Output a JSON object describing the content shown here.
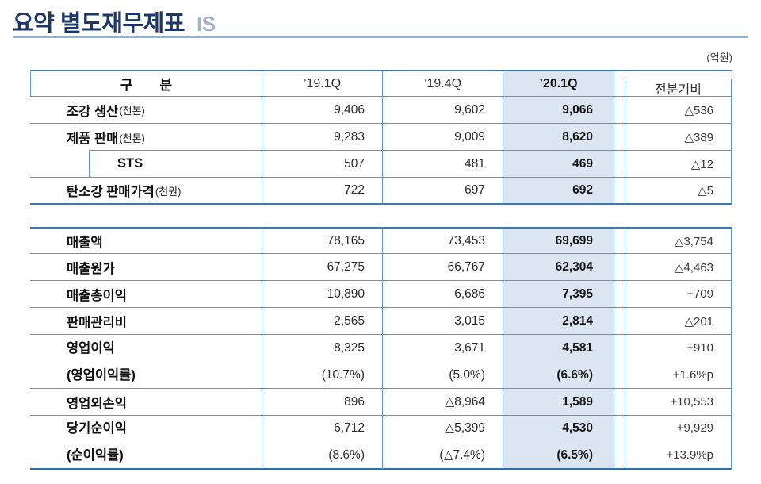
{
  "title": {
    "main": "요약 별도재무제표",
    "suffix": "_IS"
  },
  "unit_note": "(억원)",
  "header": {
    "label": "구　　분",
    "c1": "’19.1Q",
    "c2": "’19.4Q",
    "c3": "’20.1Q",
    "c4": "전분기비"
  },
  "metrics": {
    "rows": [
      {
        "label": "조강 생산",
        "unit": "(천톤)",
        "values": [
          "9,406",
          "9,602",
          "9,066",
          "△536"
        ]
      },
      {
        "label": "제품 판매",
        "unit": "(천톤)",
        "values": [
          "9,283",
          "9,009",
          "8,620",
          "△389"
        ]
      },
      {
        "label": "STS",
        "values": [
          "507",
          "481",
          "469",
          "△12"
        ]
      },
      {
        "label": "탄소강 판매가격",
        "unit": "(천원)",
        "values": [
          "722",
          "697",
          "692",
          "△5"
        ]
      }
    ]
  },
  "income": {
    "rows": [
      {
        "label": "매출액",
        "values": [
          "78,165",
          "73,453",
          "69,699",
          "△3,754"
        ]
      },
      {
        "label": "매출원가",
        "values": [
          "67,275",
          "66,767",
          "62,304",
          "△4,463"
        ]
      },
      {
        "label": "매출총이익",
        "values": [
          "10,890",
          "6,686",
          "7,395",
          "+709"
        ]
      },
      {
        "label": "판매관리비",
        "values": [
          "2,565",
          "3,015",
          "2,814",
          "△201"
        ]
      },
      {
        "lines": [
          {
            "label": "영업이익",
            "values": [
              "8,325",
              "3,671",
              "4,581",
              "+910"
            ]
          },
          {
            "label": "(영업이익률)",
            "values": [
              "(10.7%)",
              "(5.0%)",
              "(6.6%)",
              "+1.6%p"
            ]
          }
        ]
      },
      {
        "label": "영업외손익",
        "values": [
          "896",
          "△8,964",
          "1,589",
          "+10,553"
        ]
      },
      {
        "lines": [
          {
            "label": "당기순이익",
            "values": [
              "6,712",
              "△5,399",
              "4,530",
              "+9,929"
            ]
          },
          {
            "label": "(순이익률)",
            "values": [
              "(8.6%)",
              "(△7.4%)",
              "(6.5%)",
              "+13.9%p"
            ]
          }
        ]
      }
    ]
  }
}
